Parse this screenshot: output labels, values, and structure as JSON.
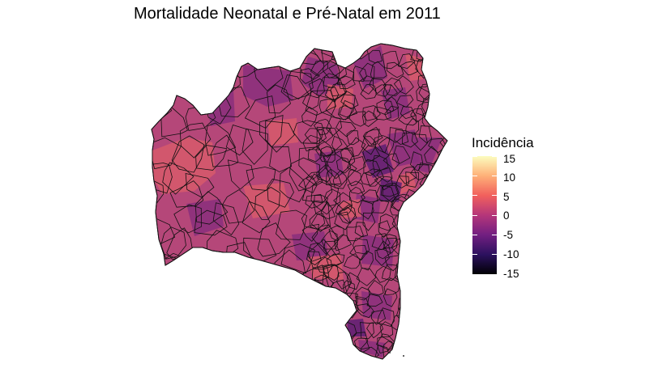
{
  "map": {
    "title": "Mortalidade Neonatal e Pré-Natal em 2011",
    "region": "Bahia",
    "fill_colors": {
      "base": "#b54779",
      "purple": "#8a2f7d",
      "deep_purple": "#5e1f73",
      "coral": "#d75a6b",
      "outline": "#111111"
    }
  },
  "legend": {
    "title": "Incidência",
    "ticks": [
      "15",
      "10",
      "5",
      "0",
      "-5",
      "-10",
      "-15"
    ],
    "scale": "magma",
    "range": [
      -15,
      15
    ],
    "gradient": [
      "#fcfdbf",
      "#feb078",
      "#f1605d",
      "#b5367a",
      "#721f81",
      "#2c115f",
      "#000004"
    ]
  }
}
